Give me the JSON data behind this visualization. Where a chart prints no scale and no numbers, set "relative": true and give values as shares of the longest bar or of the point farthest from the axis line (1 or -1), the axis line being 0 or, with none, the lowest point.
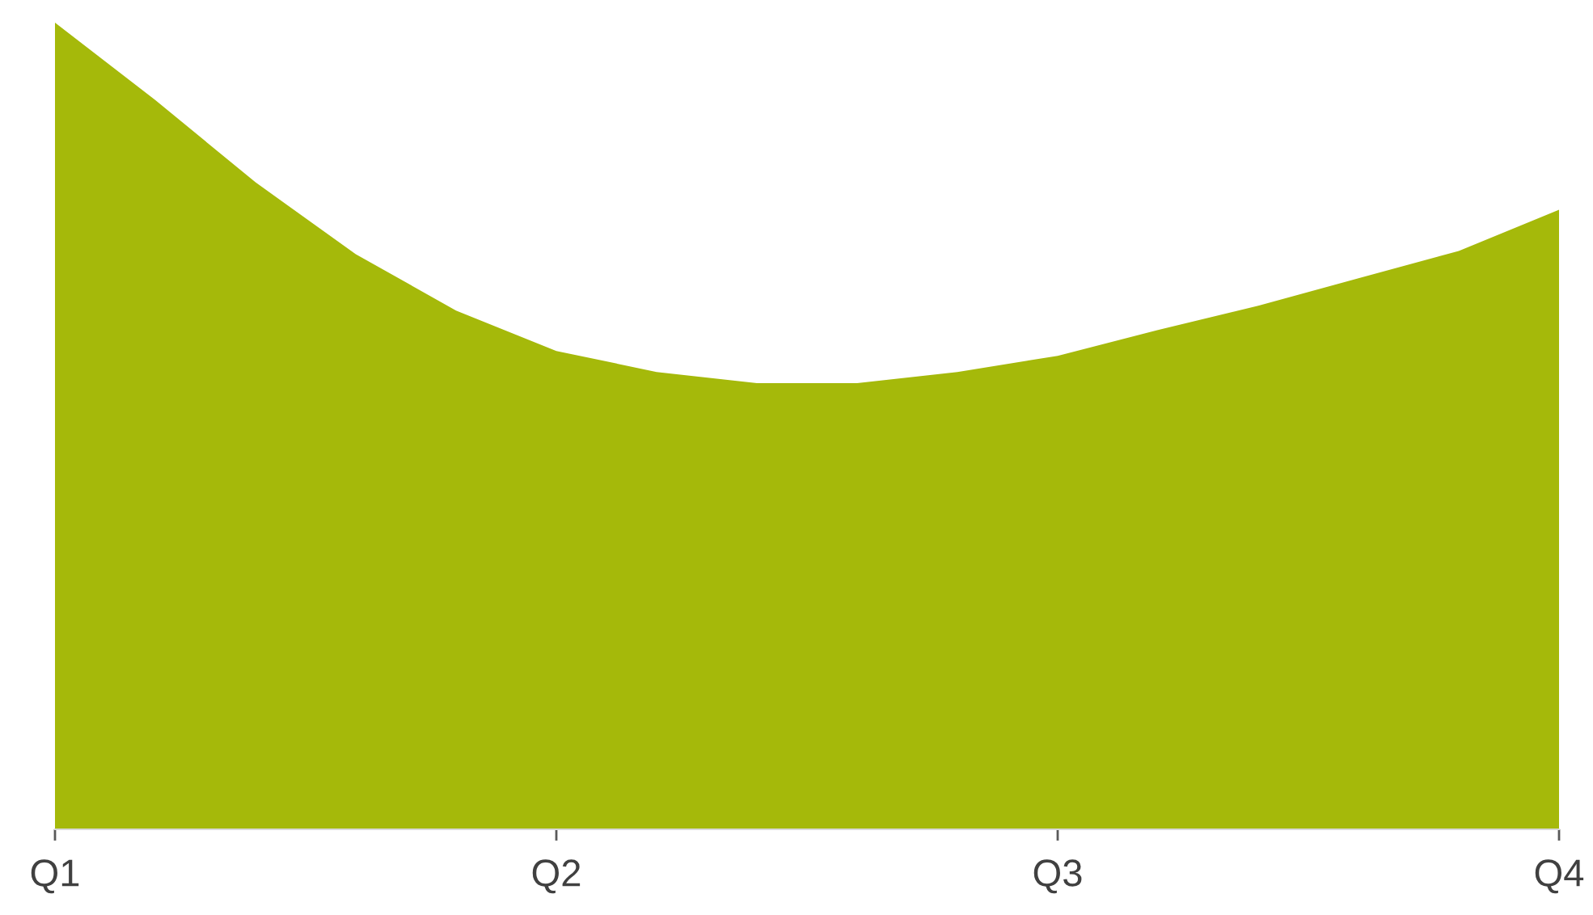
{
  "chart_data": {
    "type": "area",
    "relative": true,
    "categories": [
      "Q1",
      null,
      null,
      null,
      null,
      "Q2",
      null,
      null,
      null,
      null,
      "Q3",
      null,
      null,
      null,
      null,
      "Q4"
    ],
    "series": [
      {
        "color": "#a5b90a",
        "values": [
          1.0,
          0.904,
          0.802,
          0.713,
          0.643,
          0.593,
          0.567,
          0.553,
          0.553,
          0.567,
          0.587,
          0.619,
          0.649,
          0.683,
          0.717,
          0.768
        ]
      }
    ],
    "grid": false,
    "legend": false
  }
}
